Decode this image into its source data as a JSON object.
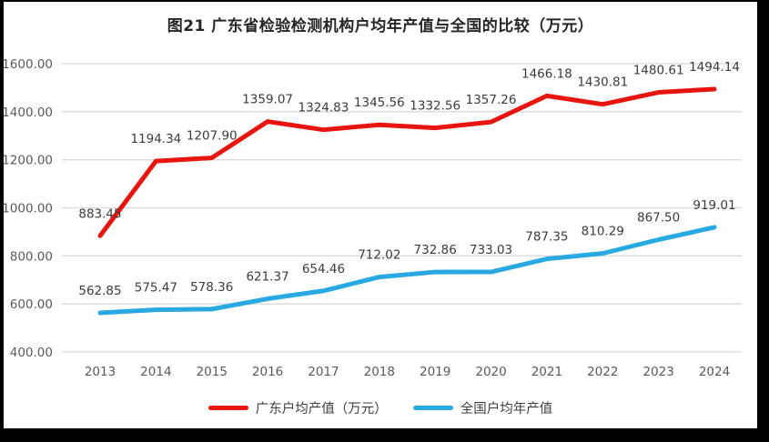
{
  "colors": {
    "guangdong_line": "#e8150f",
    "national_line": "#29a9e1",
    "gridline": "#d9d9d9",
    "tick_label": "#595959",
    "data_label": "#3b3b3b",
    "title_text": "#262626",
    "background": "#ffffff",
    "frame_border": "#000000"
  },
  "chart_data": {
    "type": "line",
    "title": "图21  广东省检验检测机构户均年产值与全国的比较（万元）",
    "categories": [
      "2013",
      "2014",
      "2015",
      "2016",
      "2017",
      "2018",
      "2019",
      "2020",
      "2021",
      "2022",
      "2023",
      "2024"
    ],
    "series": [
      {
        "name": "广东户均产值（万元）",
        "color": "#e8150f",
        "values": [
          883.45,
          1194.34,
          1207.9,
          1359.07,
          1324.83,
          1345.56,
          1332.56,
          1357.26,
          1466.18,
          1430.81,
          1480.61,
          1494.14
        ]
      },
      {
        "name": "全国户均年产值",
        "color": "#29a9e1",
        "values": [
          562.85,
          575.47,
          578.36,
          621.37,
          654.46,
          712.02,
          732.86,
          733.03,
          787.35,
          810.29,
          867.5,
          919.01
        ]
      }
    ],
    "xlabel": "",
    "ylabel": "",
    "ylim": [
      400,
      1600
    ],
    "ytick_values": [
      1600,
      1400,
      1200,
      1000,
      800,
      600,
      400
    ],
    "yticks": [
      "1600.00",
      "1400.00",
      "1200.00",
      "1000.00",
      "800.00",
      "600.00",
      "400.00"
    ],
    "grid": true,
    "value_labels": true,
    "legend_position": "bottom"
  }
}
